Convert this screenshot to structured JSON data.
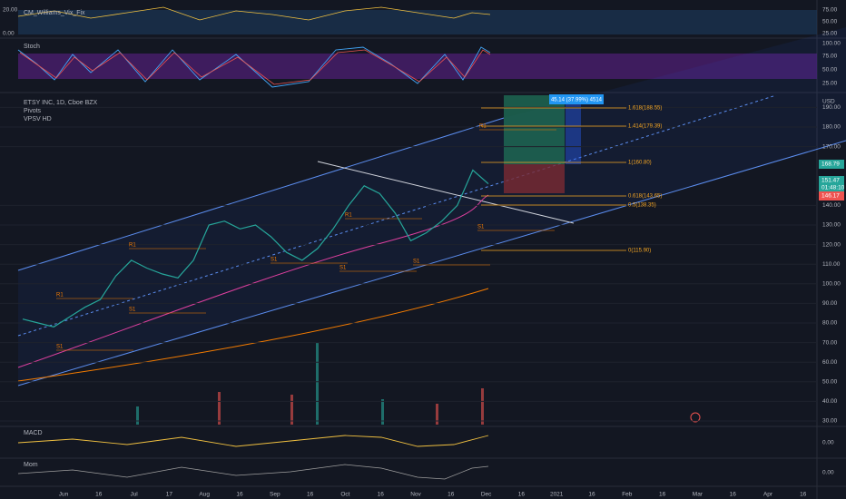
{
  "header": {
    "symbol": "ETSY INC, 1D, Cboe BZX",
    "indicators": [
      "Pivots",
      "VPSV HD"
    ]
  },
  "panels": {
    "vix": "CM_Williams_Vix_Fix",
    "stoch": "Stoch",
    "macd": "MACD",
    "mom": "Mom"
  },
  "vix_axis": {
    "left": [
      "20.00",
      "0.00"
    ],
    "right": [
      "75.00",
      "50.00",
      "25.00"
    ]
  },
  "stoch_axis": [
    "100.00",
    "75.00",
    "50.00",
    "25.00"
  ],
  "macd_axis": "0.00",
  "mom_axis": "0.00",
  "price_axis": {
    "unit": "USD",
    "labels": [
      "190.00",
      "180.00",
      "170.00",
      "140.00",
      "130.00",
      "120.00",
      "110.00",
      "100.00",
      "90.00",
      "80.00",
      "70.00",
      "60.00",
      "50.00",
      "40.00",
      "30.00"
    ],
    "last": "168.79",
    "current": "151.47",
    "countdown": "01:48:10",
    "stop": "146.17"
  },
  "fib": [
    "1.618(188.55)",
    "1.414(179.39)",
    "1(160.80)",
    "0.618(143.65)",
    "0.5(138.35)",
    "0(115.90)"
  ],
  "position_badge": "45.14 (37.99%) 4514",
  "pivots": [
    "R1",
    "R1",
    "R1",
    "R1",
    "S1",
    "S1",
    "S1",
    "S1",
    "S1",
    "S1"
  ],
  "time_axis": [
    "Jun",
    "16",
    "Jul",
    "17",
    "Aug",
    "16",
    "Sep",
    "16",
    "Oct",
    "16",
    "Nov",
    "16",
    "Dec",
    "16",
    "2021",
    "16",
    "Feb",
    "16",
    "Mar",
    "16",
    "Apr",
    "16"
  ],
  "main_chart": {
    "closes": [
      82,
      80,
      78,
      83,
      88,
      92,
      104,
      112,
      108,
      105,
      103,
      112,
      130,
      132,
      128,
      130,
      124,
      116,
      112,
      118,
      128,
      140,
      150,
      146,
      136,
      122,
      126,
      132,
      140,
      158,
      151
    ]
  }
}
